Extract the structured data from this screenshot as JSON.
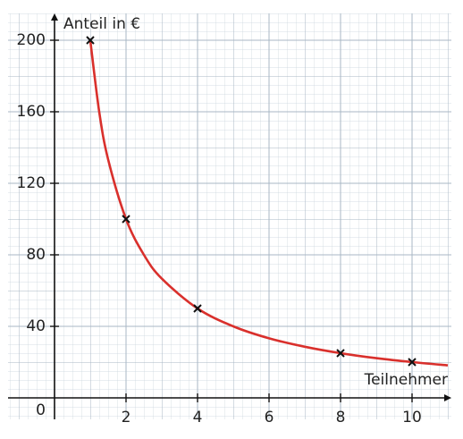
{
  "chart_data": {
    "type": "line",
    "y_label": "Anteil in €",
    "x_label": "Teilnehmer",
    "origin_label": "0",
    "xlim": [
      -1.3,
      11.1
    ],
    "ylim": [
      -12,
      215
    ],
    "xticks": [
      2,
      4,
      6,
      8,
      10
    ],
    "yticks": [
      40,
      80,
      120,
      160,
      200
    ],
    "grid": true,
    "series": [
      {
        "color": "#d9302c",
        "marker": "none",
        "x": [
          1,
          1.25,
          1.5,
          2,
          2.5,
          3,
          4,
          5,
          6,
          7,
          8,
          9,
          10,
          11
        ],
        "values": [
          200,
          160,
          133.3,
          100,
          80,
          66.7,
          50,
          40,
          33.3,
          28.6,
          25,
          22.2,
          20,
          18.2
        ]
      },
      {
        "color": "#111111",
        "marker": "x",
        "x": [
          1,
          2,
          4,
          8,
          10
        ],
        "values": [
          200,
          100,
          50,
          25,
          20
        ]
      }
    ]
  }
}
